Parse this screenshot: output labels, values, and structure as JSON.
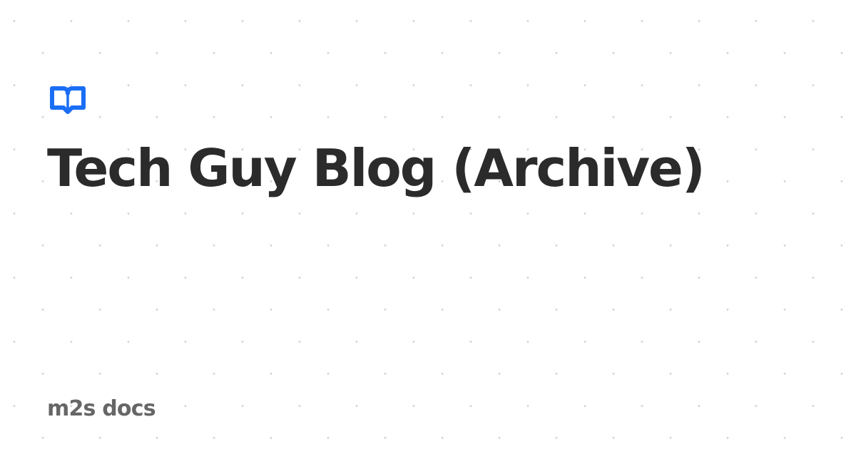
{
  "card": {
    "title": "Tech Guy Blog (Archive)",
    "site_name": "m2s docs",
    "logo_icon": "open-book-icon"
  },
  "colors": {
    "background": "#ffffff",
    "title_text": "#2b2b2b",
    "site_name_text": "#666666",
    "accent": "#1a6ef5",
    "pattern": "#c9c9c9"
  }
}
